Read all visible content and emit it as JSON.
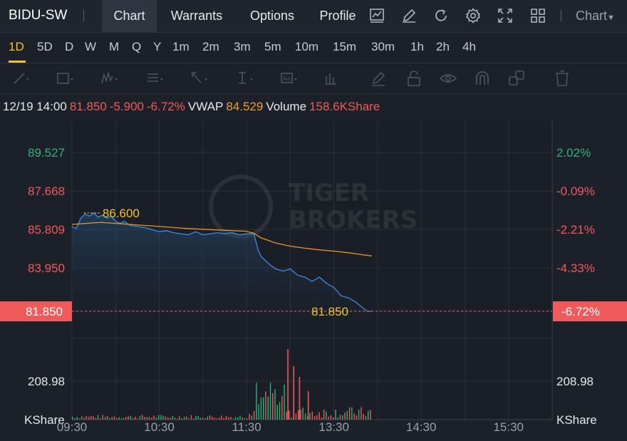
{
  "header": {
    "ticker": "BIDU-SW",
    "tabs": [
      {
        "label": "Chart",
        "active": true
      },
      {
        "label": "Warrants",
        "active": false
      },
      {
        "label": "Options",
        "active": false
      },
      {
        "label": "Profile",
        "active": false
      }
    ],
    "icons": [
      "indicator-chart-icon",
      "drawing-pen-icon",
      "refresh-icon",
      "settings-gear-icon",
      "fullscreen-icon",
      "grid-layout-icon"
    ],
    "chart_type_label": "Chart"
  },
  "periods": [
    "1D",
    "5D",
    "D",
    "W",
    "M",
    "Q",
    "Y",
    "1m",
    "2m",
    "3m",
    "5m",
    "10m",
    "15m",
    "30m",
    "1h",
    "2h",
    "4h"
  ],
  "active_period": "1D",
  "toolbar_icons": [
    "trend-line-icon",
    "rectangle-icon",
    "pattern-icon",
    "fibonacci-icon",
    "arrow-icon",
    "measure-icon",
    "text-icon",
    "bars-pattern-icon",
    "brush-icon",
    "lock-icon",
    "eye-icon",
    "magnet-icon",
    "duplicate-icon",
    "trash-icon"
  ],
  "info": {
    "datetime": "12/19 14:00",
    "price": "81.850",
    "change": "-5.900",
    "change_pct": "-6.72%",
    "vwap_label": "VWAP",
    "vwap_value": "84.529",
    "volume_label": "Volume",
    "volume_value": "158.6KShare"
  },
  "colors": {
    "up": "#2fb47c",
    "down": "#f05a5a",
    "price_line": "#3a8fe0",
    "vwap_line": "#e8952e",
    "marker": "#f2c230"
  },
  "chart_data": {
    "type": "line",
    "price_axis_left": [
      "89.527",
      "87.668",
      "85.809",
      "83.950",
      "81.850"
    ],
    "pct_axis_right": [
      "2.02%",
      "-0.09%",
      "-2.21%",
      "-4.33%",
      "-6.72%"
    ],
    "x_ticks": [
      "09:30",
      "10:30",
      "11:30",
      "13:30",
      "14:30",
      "15:30"
    ],
    "ylim": [
      81.0,
      90.5
    ],
    "prev_close": 87.75,
    "high_label": "86.600",
    "last_label": "81.850",
    "series": [
      {
        "name": "Price",
        "x": [
          0,
          3,
          6,
          9,
          12,
          15,
          18,
          21,
          24,
          27,
          30,
          33,
          36,
          40,
          45,
          50,
          55,
          60,
          65,
          70,
          75,
          80,
          85,
          90,
          95,
          100,
          105,
          110,
          115,
          120,
          125,
          128,
          130,
          133,
          136,
          140,
          145,
          150,
          155,
          160,
          165,
          170,
          175,
          180,
          185,
          190,
          195,
          200,
          203,
          206
        ],
        "values": [
          85.95,
          85.85,
          86.35,
          86.55,
          86.45,
          86.6,
          86.4,
          86.5,
          86.35,
          86.45,
          86.2,
          86.1,
          86.2,
          86.0,
          85.95,
          85.9,
          85.8,
          85.7,
          85.75,
          85.65,
          85.6,
          85.55,
          85.7,
          85.55,
          85.6,
          85.65,
          85.6,
          85.65,
          85.55,
          85.6,
          85.6,
          84.8,
          84.5,
          84.3,
          84.1,
          83.9,
          83.8,
          83.9,
          83.6,
          83.5,
          83.3,
          83.5,
          83.2,
          83.0,
          82.6,
          82.5,
          82.3,
          82.0,
          81.85,
          81.85
        ]
      },
      {
        "name": "VWAP",
        "x": [
          0,
          20,
          40,
          60,
          80,
          100,
          120,
          125,
          130,
          140,
          150,
          160,
          170,
          180,
          190,
          200,
          206
        ],
        "values": [
          86.05,
          86.15,
          86.05,
          85.95,
          85.85,
          85.78,
          85.72,
          85.62,
          85.4,
          85.15,
          85.0,
          84.9,
          84.82,
          84.76,
          84.68,
          84.58,
          84.529
        ]
      }
    ],
    "volume_axis_label": "208.98",
    "volume_unit": "KShare"
  }
}
